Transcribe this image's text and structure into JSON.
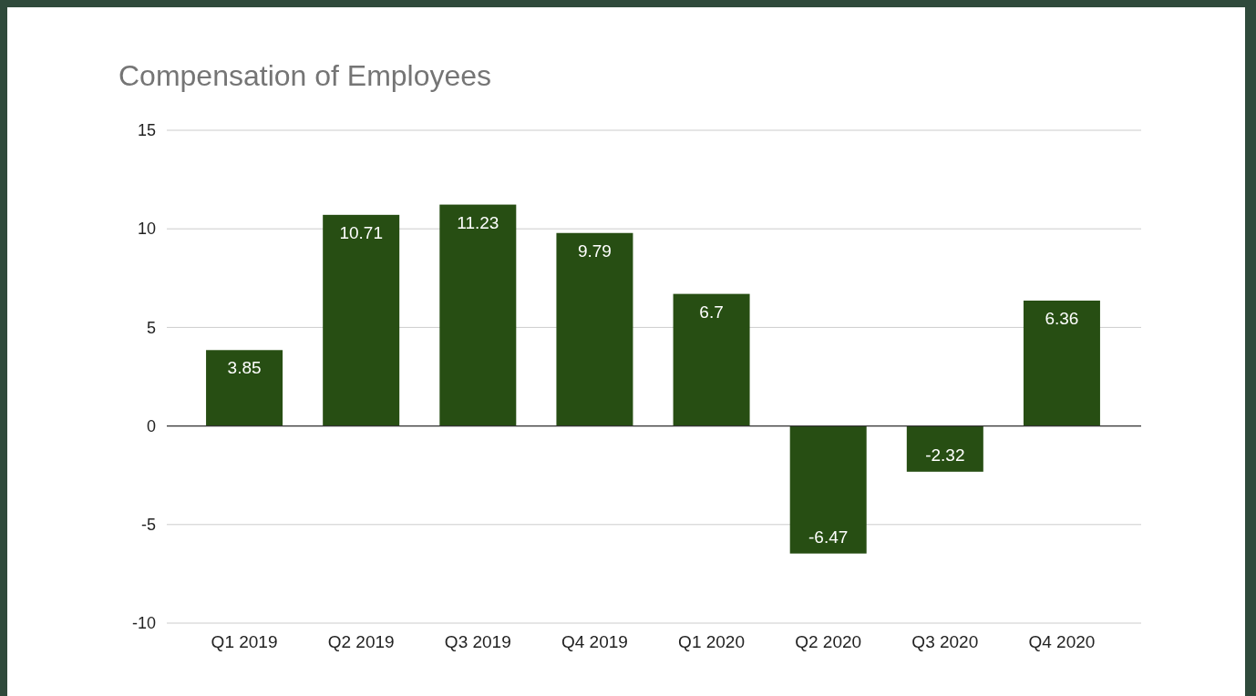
{
  "chart_data": {
    "type": "bar",
    "title": "Compensation of Employees",
    "categories": [
      "Q1 2019",
      "Q2 2019",
      "Q3 2019",
      "Q4 2019",
      "Q1 2020",
      "Q2 2020",
      "Q3 2020",
      "Q4 2020"
    ],
    "values": [
      3.85,
      10.71,
      11.23,
      9.79,
      6.7,
      -6.47,
      -2.32,
      6.36
    ],
    "color": "#274e13",
    "ylim": [
      -10,
      15
    ],
    "yticks": [
      -10,
      -5,
      0,
      5,
      10,
      15
    ],
    "grid": "y",
    "data_labels": true
  }
}
